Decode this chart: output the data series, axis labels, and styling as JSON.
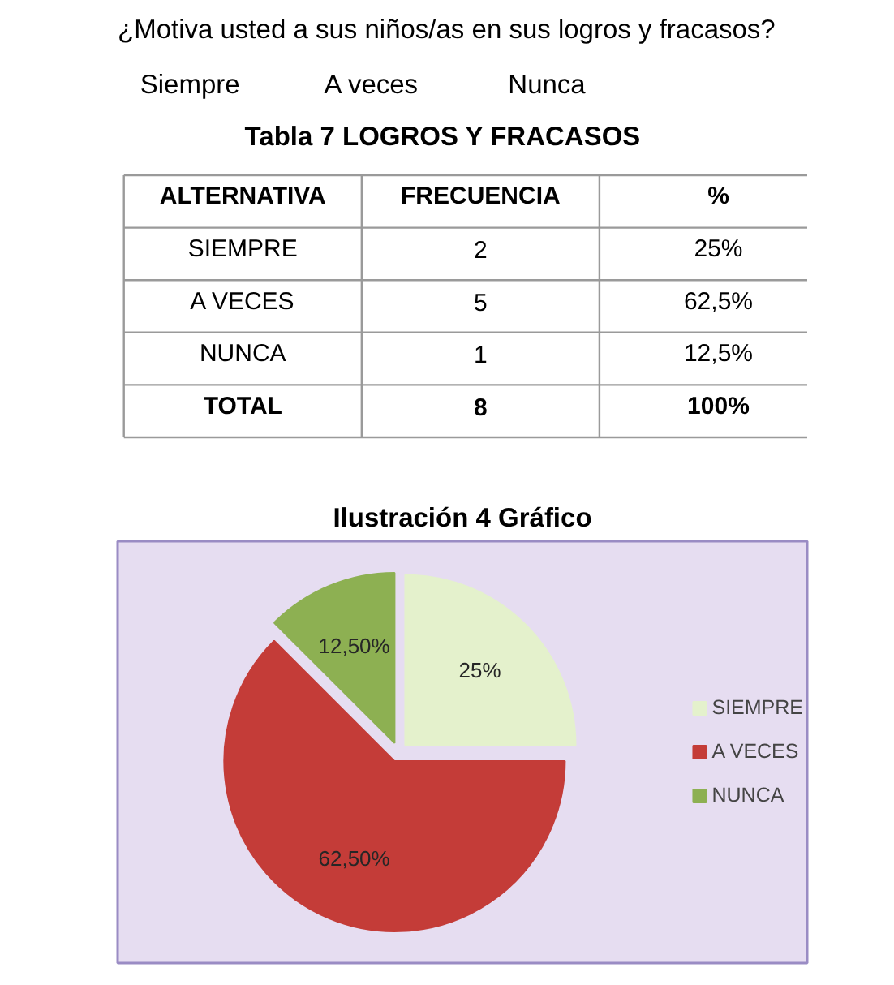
{
  "chart_data": [
    {
      "type": "other",
      "title": "Tabla 7 LOGROS Y FRACASOS",
      "annotations": [
        "¿Motiva usted a sus niños/as en sus logros y fracasos?",
        "Siempre",
        "A veces",
        "Nunca"
      ],
      "xlabel": "ALTERNATIVA",
      "categories": [
        "SIEMPRE",
        "A VECES",
        "NUNCA",
        "TOTAL"
      ],
      "data_labels": true,
      "series": [
        {
          "name": "FRECUENCIA",
          "values": [
            2,
            5,
            1,
            8
          ]
        },
        {
          "name": "%",
          "values": [
            25,
            62.5,
            12.5,
            100
          ],
          "value_labels": [
            "25%",
            "62,5%",
            "12,5%",
            "100%"
          ]
        }
      ]
    },
    {
      "type": "pie",
      "title": "Ilustración 4 Gráfico",
      "categories": [
        "SIEMPRE",
        "A VECES",
        "NUNCA"
      ],
      "values": [
        25,
        62.5,
        12.5
      ],
      "colors": [
        "#e4f1cc",
        "#c43c38",
        "#8db052"
      ],
      "value_labels": [
        "25%",
        "62,50%",
        "12,50%"
      ],
      "legend": "right"
    }
  ]
}
